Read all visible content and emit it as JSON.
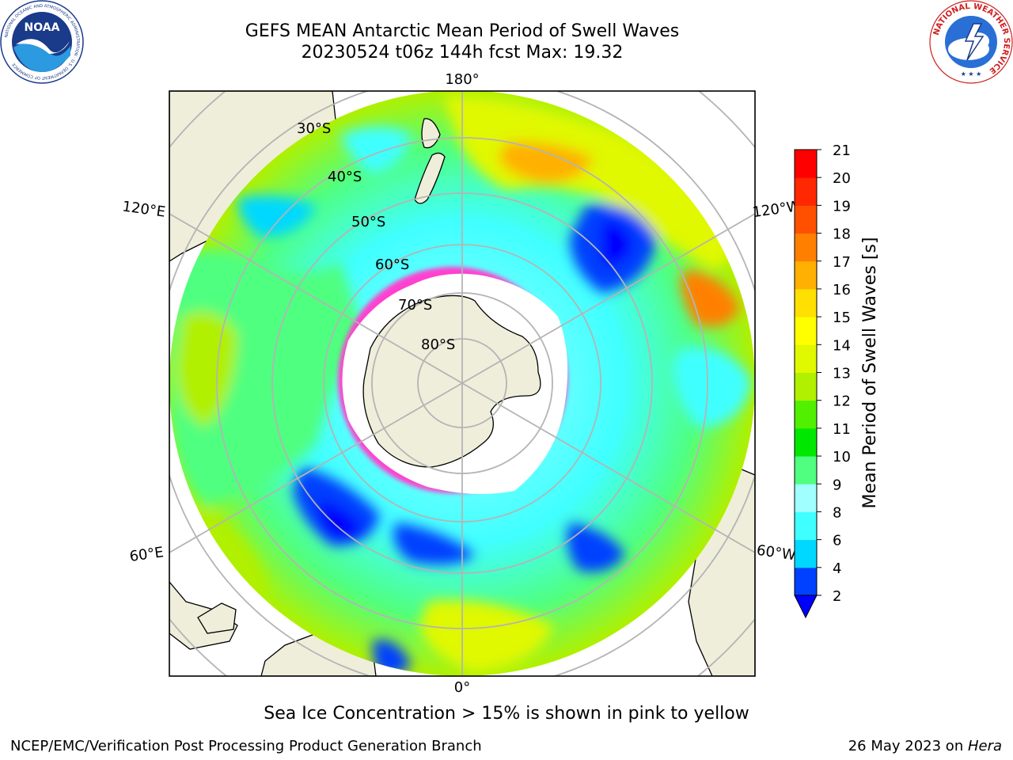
{
  "header": {
    "title_line1": "GEFS MEAN Antarctic Mean Period of Swell Waves",
    "title_line2": "20230524 t06z 144h fcst   Max: 19.32"
  },
  "logos": {
    "noaa_text": "NOAA",
    "noaa_ring_text": "NATIONAL OCEANIC AND ATMOSPHERIC ADMINISTRATION · U.S. DEPARTMENT OF COMMERCE",
    "nws_ring_text": "NATIONAL WEATHER SERVICE"
  },
  "map": {
    "projection": "south-polar-stereographic",
    "colors": {
      "land": "#efeedb",
      "ocean_fill": "#ffffff",
      "grid": "#b4b4b4",
      "coast": "#000000",
      "sea_ice": "#ff40d0"
    },
    "longitude_labels": {
      "top": "180°",
      "bottom": "0°",
      "left_upper": "120°E",
      "left_lower": "60°E",
      "right_upper": "120°W",
      "right_lower": "60°W"
    },
    "latitude_labels": [
      "30°S",
      "40°S",
      "50°S",
      "60°S",
      "70°S",
      "80°S"
    ]
  },
  "colorbar": {
    "label": "Mean Period of Swell Waves [s]",
    "ticks": [
      "2",
      "4",
      "6",
      "8",
      "9",
      "10",
      "11",
      "12",
      "13",
      "14",
      "15",
      "16",
      "17",
      "18",
      "19",
      "20",
      "21"
    ],
    "colors": [
      "#0040ff",
      "#00d8ff",
      "#40ffff",
      "#a0ffff",
      "#50ff80",
      "#00e800",
      "#50f000",
      "#b0f000",
      "#e0f800",
      "#ffff00",
      "#ffe000",
      "#ffb000",
      "#ff8000",
      "#ff5000",
      "#ff2800",
      "#ff0000"
    ],
    "under_color": "#0000ff"
  },
  "footer": {
    "caption": "Sea Ice Concentration > 15% is shown in pink to yellow",
    "left": "NCEP/EMC/Verification Post Processing Product Generation Branch",
    "right_prefix": "26 May 2023 on ",
    "right_host": "Hera"
  }
}
